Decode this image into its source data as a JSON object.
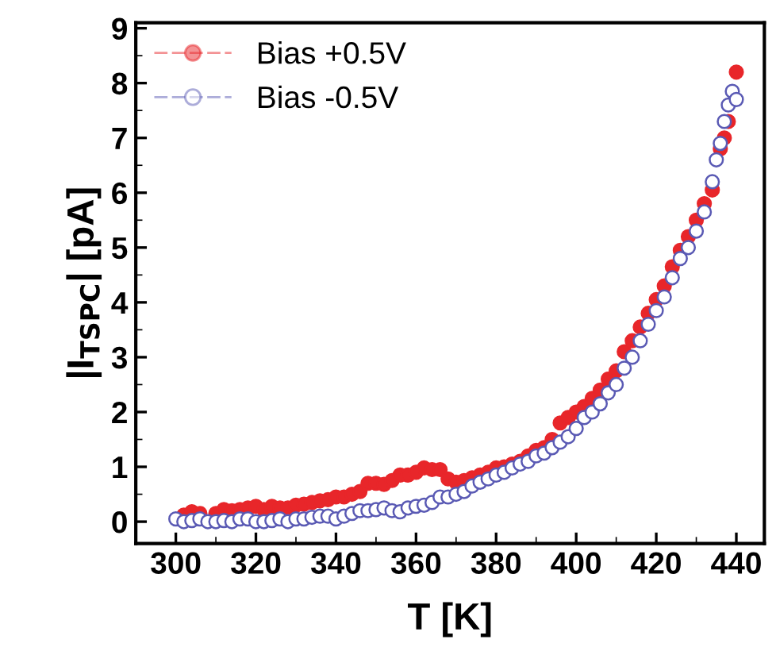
{
  "chart_data": {
    "type": "scatter",
    "xlabel": "T [K]",
    "ylabel": "|I$_{TSPC}$| [pA]",
    "xlim": [
      290,
      447
    ],
    "ylim": [
      -0.4,
      9.1
    ],
    "xticks": [
      300,
      320,
      340,
      360,
      380,
      400,
      420,
      440
    ],
    "yticks": [
      0,
      1,
      2,
      3,
      4,
      5,
      6,
      7,
      8,
      9
    ],
    "legend": "top left",
    "grid": false,
    "series": [
      {
        "name": "Bias +0.5V",
        "color": "#e8262a",
        "marker": "circle",
        "x": [
          302,
          304,
          306,
          308,
          310,
          312,
          314,
          316,
          318,
          320,
          322,
          324,
          326,
          328,
          330,
          332,
          334,
          336,
          338,
          340,
          342,
          344,
          346,
          348,
          350,
          352,
          354,
          356,
          358,
          360,
          362,
          364,
          366,
          368,
          370,
          372,
          374,
          376,
          378,
          380,
          382,
          384,
          386,
          388,
          390,
          392,
          394,
          396,
          398,
          400,
          402,
          404,
          406,
          408,
          410,
          412,
          414,
          416,
          418,
          420,
          422,
          424,
          426,
          428,
          430,
          432,
          434,
          436,
          437,
          438,
          440
        ],
        "values": [
          0.12,
          0.18,
          0.15,
          null,
          0.15,
          0.22,
          0.2,
          0.22,
          0.25,
          0.28,
          0.22,
          0.28,
          0.25,
          0.25,
          0.3,
          0.32,
          0.35,
          0.38,
          0.4,
          0.45,
          0.45,
          0.5,
          0.55,
          0.7,
          0.7,
          0.68,
          0.75,
          0.85,
          0.85,
          0.9,
          0.98,
          0.95,
          0.95,
          0.78,
          0.72,
          0.75,
          0.8,
          0.85,
          0.9,
          0.98,
          1.0,
          1.05,
          1.1,
          1.2,
          1.3,
          1.35,
          1.5,
          1.8,
          1.9,
          2.0,
          2.1,
          2.25,
          2.4,
          2.6,
          2.75,
          3.1,
          3.3,
          3.55,
          3.8,
          4.05,
          4.3,
          4.65,
          4.95,
          5.2,
          5.5,
          5.8,
          6.05,
          6.8,
          7.0,
          7.3,
          8.2
        ]
      },
      {
        "name": "Bias -0.5V",
        "color": "#5a5ab4",
        "marker": "circle",
        "x": [
          300,
          302,
          304,
          306,
          308,
          310,
          312,
          314,
          316,
          318,
          320,
          322,
          324,
          326,
          328,
          330,
          332,
          334,
          336,
          338,
          340,
          342,
          344,
          346,
          348,
          350,
          352,
          354,
          356,
          358,
          360,
          362,
          364,
          366,
          368,
          370,
          372,
          374,
          376,
          378,
          380,
          382,
          384,
          386,
          388,
          390,
          392,
          394,
          396,
          398,
          400,
          402,
          404,
          406,
          408,
          410,
          412,
          414,
          416,
          418,
          420,
          422,
          424,
          426,
          428,
          430,
          432,
          434,
          435,
          436,
          437,
          438,
          439,
          440
        ],
        "values": [
          0.05,
          0.0,
          0.02,
          0.05,
          0.0,
          0.0,
          0.02,
          0.0,
          0.05,
          0.05,
          0.0,
          0.0,
          0.02,
          0.05,
          0.0,
          0.05,
          0.05,
          0.08,
          0.1,
          0.1,
          0.05,
          0.1,
          0.15,
          0.2,
          0.2,
          0.22,
          0.25,
          0.2,
          0.18,
          0.25,
          0.28,
          0.3,
          0.35,
          0.45,
          0.45,
          0.5,
          0.55,
          0.65,
          0.72,
          0.78,
          0.85,
          0.9,
          0.98,
          1.05,
          1.1,
          1.2,
          1.25,
          1.35,
          1.45,
          1.55,
          1.7,
          1.9,
          2.0,
          2.15,
          2.35,
          2.5,
          2.8,
          3.0,
          3.3,
          3.6,
          3.85,
          4.1,
          4.45,
          4.8,
          5.0,
          5.3,
          5.65,
          6.2,
          6.6,
          6.9,
          7.3,
          7.6,
          7.85,
          7.7
        ]
      }
    ]
  }
}
